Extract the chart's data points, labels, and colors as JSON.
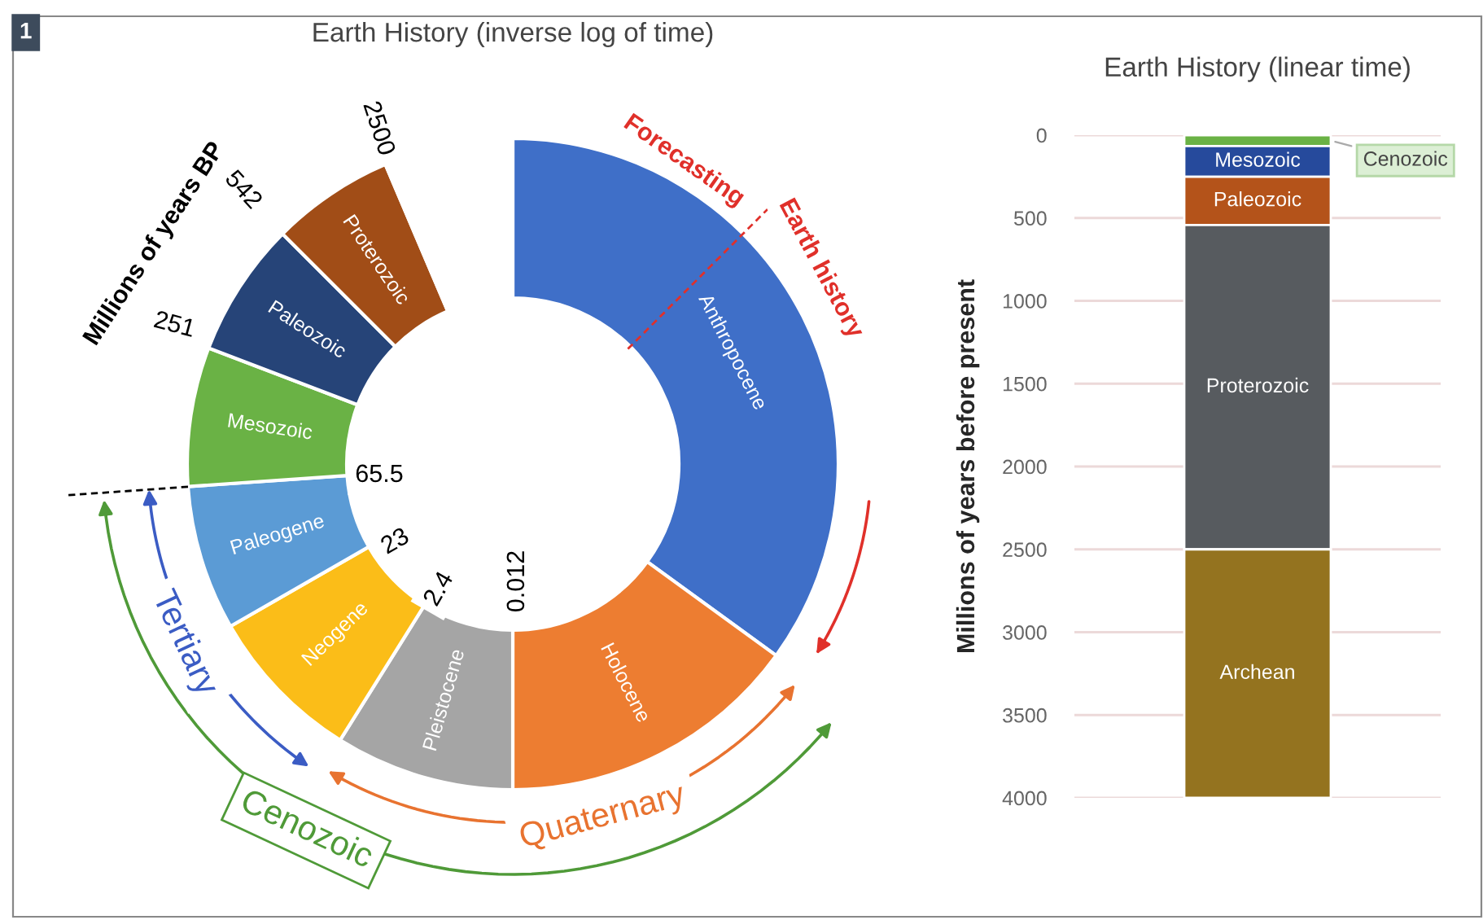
{
  "chart_data": [
    {
      "type": "donut",
      "title": "Earth History (inverse log of time)",
      "categories": [
        "Anthropocene",
        "Holocene",
        "Pleistocene",
        "Neogene",
        "Paleogene",
        "Mesozoic",
        "Paleozoic",
        "Proterozoic",
        null
      ],
      "values": [
        35,
        15,
        8.9,
        7.8,
        7.2,
        6.9,
        6.7,
        6.1,
        6.4
      ],
      "colors": [
        "#3f6fc8",
        "#ed7d31",
        "#a5a5a5",
        "#fbbd18",
        "#5b9bd5",
        "#6ab245",
        "#264478",
        "#a14d17",
        "#ffffff"
      ],
      "annotations": [
        "1",
        "Millions of years BP",
        "2500",
        "542",
        "251",
        "65.5",
        "23",
        "2.4",
        "0.012",
        "Forecasting",
        "Earth history",
        "Tertiary",
        "Quaternary",
        "Cenozoic"
      ]
    },
    {
      "type": "bar",
      "title": "Earth History (linear time)",
      "ylabel": "Millions of years before present",
      "categories": [
        null
      ],
      "stacked": true,
      "legend": false,
      "grid": "y",
      "series": [
        {
          "name": "Cenozoic",
          "color": "#6ab245",
          "values": [
            65.5
          ]
        },
        {
          "name": "Mesozoic",
          "color": "#264a9c",
          "values": [
            185.5
          ]
        },
        {
          "name": "Paleozoic",
          "color": "#b4531a",
          "values": [
            291
          ]
        },
        {
          "name": "Proterozoic",
          "color": "#575b5f",
          "values": [
            1958
          ]
        },
        {
          "name": "Archean",
          "color": "#94731f",
          "values": [
            1500
          ]
        }
      ],
      "ylim": [
        4000,
        0
      ],
      "yticks": [
        0,
        500,
        1000,
        1500,
        2000,
        2500,
        3000,
        3500,
        4000
      ]
    }
  ]
}
